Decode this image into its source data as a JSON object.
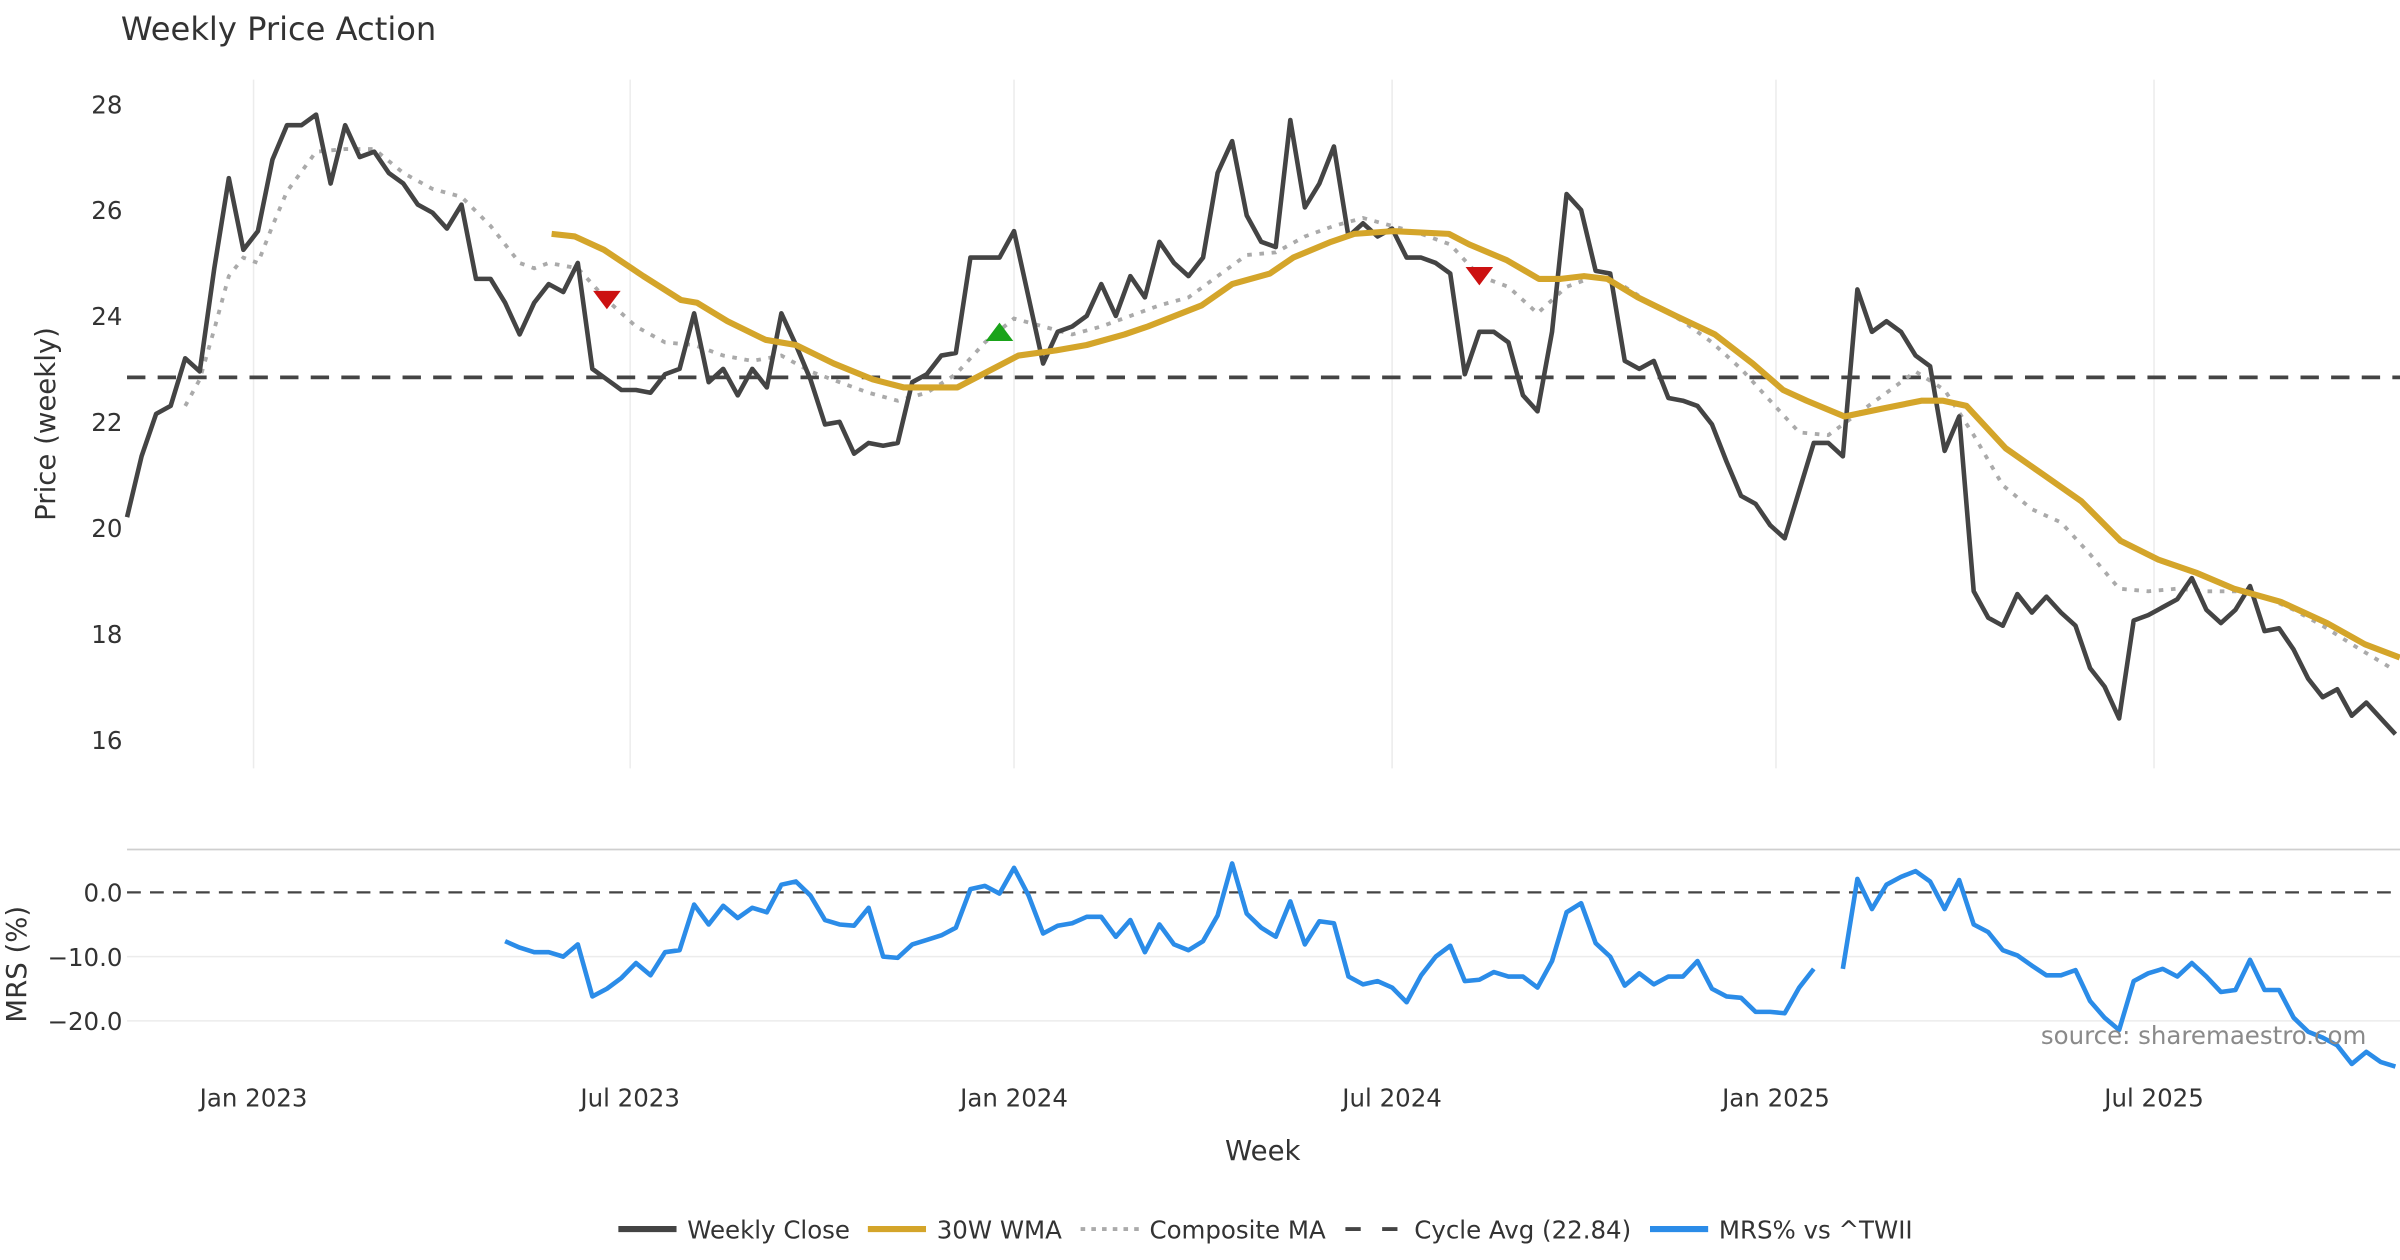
{
  "chart_data": {
    "type": "line",
    "title": "Weekly Price Action",
    "xlabel": "Week",
    "ylabel": "Price (weekly)",
    "ylabel_lower": "MRS (%)",
    "ylim": [
      15.4,
      28.5
    ],
    "ylim_lower": [
      -28.5,
      6.5
    ],
    "yticks": [
      28,
      26,
      24,
      22,
      20,
      18,
      16
    ],
    "yticks_lower": [
      {
        "value": 0,
        "label": "0.0"
      },
      {
        "value": -10,
        "label": "−10.0"
      },
      {
        "value": -20,
        "label": "−20.0"
      }
    ],
    "x_note": "x values are week index (0 = first week shown)",
    "xticks": [
      {
        "week": 8.7,
        "label": "Jan 2023"
      },
      {
        "week": 34.6,
        "label": "Jul 2023"
      },
      {
        "week": 61.0,
        "label": "Jan 2024"
      },
      {
        "week": 87.0,
        "label": "Jul 2024"
      },
      {
        "week": 113.4,
        "label": "Jan 2025"
      },
      {
        "week": 139.4,
        "label": "Jul 2025"
      }
    ],
    "weekly_close": [
      20.2,
      21.35,
      22.15,
      22.3,
      23.2,
      22.95,
      24.9,
      26.6,
      25.25,
      25.6,
      26.95,
      27.6,
      27.6,
      27.8,
      26.5,
      27.6,
      27.0,
      27.1,
      26.7,
      26.5,
      26.1,
      25.95,
      25.65,
      26.1,
      24.7,
      24.7,
      24.25,
      23.65,
      24.25,
      24.6,
      24.45,
      25.0,
      23.0,
      22.8,
      22.6,
      22.6,
      22.55,
      22.9,
      23.0,
      24.05,
      22.75,
      23.0,
      22.5,
      23.0,
      22.65,
      24.05,
      23.45,
      22.8,
      21.95,
      22.0,
      21.4,
      21.6,
      21.55,
      21.6,
      22.75,
      22.9,
      23.25,
      23.3,
      25.1,
      25.1,
      25.1,
      25.6,
      24.35,
      23.1,
      23.7,
      23.8,
      24.0,
      24.6,
      24.0,
      24.75,
      24.35,
      25.4,
      25.0,
      24.75,
      25.1,
      26.7,
      27.3,
      25.9,
      25.4,
      25.3,
      27.7,
      26.05,
      26.5,
      27.2,
      25.5,
      25.75,
      25.5,
      25.65,
      25.1,
      25.1,
      25.0,
      24.8,
      22.9,
      23.7,
      23.7,
      23.5,
      22.5,
      22.2,
      23.7,
      26.3,
      26.0,
      24.85,
      24.8,
      23.15,
      23.0,
      23.15,
      22.45,
      22.4,
      22.3,
      21.95,
      21.25,
      20.6,
      20.45,
      20.05,
      19.8,
      20.7,
      21.6,
      21.6,
      21.35,
      24.5,
      23.7,
      23.9,
      23.7,
      23.25,
      23.05,
      21.45,
      22.1,
      18.8,
      18.3,
      18.15,
      18.75,
      18.4,
      18.7,
      18.4,
      18.15,
      17.35,
      17.0,
      16.4,
      18.25,
      18.35,
      18.5,
      18.65,
      19.05,
      18.45,
      18.2,
      18.45,
      18.9,
      18.05,
      18.1,
      17.7,
      17.15,
      16.8,
      16.95,
      16.45,
      16.7,
      16.4,
      16.1
    ],
    "wma_30w": [
      [
        29.2,
        25.55
      ],
      [
        30.8,
        25.5
      ],
      [
        32.8,
        25.25
      ],
      [
        35.5,
        24.75
      ],
      [
        38.1,
        24.3
      ],
      [
        39.2,
        24.25
      ],
      [
        41.3,
        23.9
      ],
      [
        43.9,
        23.55
      ],
      [
        46,
        23.45
      ],
      [
        48.6,
        23.1
      ],
      [
        51.3,
        22.8
      ],
      [
        53.4,
        22.65
      ],
      [
        57.1,
        22.65
      ],
      [
        59.2,
        22.95
      ],
      [
        61.3,
        23.25
      ],
      [
        63.9,
        23.35
      ],
      [
        66,
        23.45
      ],
      [
        68.6,
        23.65
      ],
      [
        70.2,
        23.8
      ],
      [
        73.9,
        24.2
      ],
      [
        76,
        24.6
      ],
      [
        78.6,
        24.8
      ],
      [
        80.2,
        25.1
      ],
      [
        82.8,
        25.4
      ],
      [
        84.4,
        25.55
      ],
      [
        87.1,
        25.6
      ],
      [
        90.9,
        25.55
      ],
      [
        92.3,
        25.35
      ],
      [
        94.9,
        25.05
      ],
      [
        97.1,
        24.7
      ],
      [
        98.6,
        24.7
      ],
      [
        100.2,
        24.75
      ],
      [
        101.8,
        24.7
      ],
      [
        103.9,
        24.35
      ],
      [
        106.5,
        24.0
      ],
      [
        109.2,
        23.65
      ],
      [
        111.8,
        23.1
      ],
      [
        113.9,
        22.6
      ],
      [
        115.5,
        22.4
      ],
      [
        118.1,
        22.1
      ],
      [
        120.7,
        22.25
      ],
      [
        123.4,
        22.4
      ],
      [
        124.9,
        22.4
      ],
      [
        126.5,
        22.3
      ],
      [
        129.2,
        21.5
      ],
      [
        131.8,
        21.0
      ],
      [
        134.4,
        20.5
      ],
      [
        137.1,
        19.75
      ],
      [
        139.7,
        19.4
      ],
      [
        142.3,
        19.15
      ],
      [
        144.9,
        18.85
      ],
      [
        148.1,
        18.6
      ],
      [
        151.3,
        18.2
      ],
      [
        153.9,
        17.8
      ],
      [
        156.3,
        17.55
      ]
    ],
    "composite_ma": [
      [
        4,
        22.3
      ],
      [
        5,
        22.8
      ],
      [
        6,
        23.75
      ],
      [
        7,
        24.75
      ],
      [
        8,
        25.1
      ],
      [
        9,
        25.0
      ],
      [
        10,
        25.7
      ],
      [
        11,
        26.35
      ],
      [
        13,
        27.1
      ],
      [
        15,
        27.15
      ],
      [
        17,
        27.15
      ],
      [
        19,
        26.7
      ],
      [
        21,
        26.4
      ],
      [
        23,
        26.25
      ],
      [
        25,
        25.7
      ],
      [
        27,
        25.0
      ],
      [
        28,
        24.9
      ],
      [
        29,
        25.0
      ],
      [
        31,
        24.9
      ],
      [
        33,
        24.3
      ],
      [
        35,
        23.8
      ],
      [
        37,
        23.5
      ],
      [
        39,
        23.45
      ],
      [
        41,
        23.25
      ],
      [
        43,
        23.15
      ],
      [
        45,
        23.25
      ],
      [
        47,
        22.95
      ],
      [
        49,
        22.75
      ],
      [
        51,
        22.55
      ],
      [
        53,
        22.4
      ],
      [
        55,
        22.55
      ],
      [
        57,
        22.9
      ],
      [
        59,
        23.5
      ],
      [
        61,
        23.95
      ],
      [
        63,
        23.8
      ],
      [
        65,
        23.65
      ],
      [
        67,
        23.8
      ],
      [
        69,
        24.0
      ],
      [
        71,
        24.2
      ],
      [
        73,
        24.35
      ],
      [
        75,
        24.75
      ],
      [
        77,
        25.15
      ],
      [
        79,
        25.2
      ],
      [
        81,
        25.5
      ],
      [
        83,
        25.7
      ],
      [
        85,
        25.85
      ],
      [
        87,
        25.7
      ],
      [
        89,
        25.55
      ],
      [
        91,
        25.35
      ],
      [
        93,
        24.75
      ],
      [
        95,
        24.55
      ],
      [
        97,
        24.05
      ],
      [
        99,
        24.55
      ],
      [
        101,
        24.75
      ],
      [
        103,
        24.55
      ],
      [
        105,
        24.2
      ],
      [
        107,
        23.9
      ],
      [
        109,
        23.5
      ],
      [
        111,
        23.0
      ],
      [
        113,
        22.4
      ],
      [
        115,
        21.8
      ],
      [
        117,
        21.75
      ],
      [
        119,
        22.15
      ],
      [
        121,
        22.55
      ],
      [
        123,
        22.95
      ],
      [
        125,
        22.6
      ],
      [
        127,
        21.75
      ],
      [
        129,
        20.8
      ],
      [
        131,
        20.35
      ],
      [
        133,
        20.1
      ],
      [
        135,
        19.5
      ],
      [
        137,
        18.85
      ],
      [
        139,
        18.8
      ],
      [
        141,
        18.85
      ],
      [
        143,
        18.8
      ],
      [
        145,
        18.8
      ],
      [
        147,
        18.7
      ],
      [
        149,
        18.45
      ],
      [
        151,
        18.15
      ],
      [
        153,
        17.8
      ],
      [
        156,
        17.3
      ]
    ],
    "cycle_avg": 22.84,
    "signals": [
      {
        "type": "sell",
        "week": 33,
        "value": 24.3
      },
      {
        "type": "buy",
        "week": 60,
        "value": 23.7
      },
      {
        "type": "sell",
        "week": 93,
        "value": 24.75
      }
    ],
    "mrs_start_week": 26,
    "mrs_pct": [
      -7.6,
      -8.6,
      -9.3,
      -9.3,
      -10,
      -8.1,
      -16.2,
      -15,
      -13.3,
      -11,
      -12.9,
      -9.3,
      -9,
      -1.9,
      -5,
      -2.1,
      -4,
      -2.4,
      -3.1,
      1.2,
      1.7,
      -0.5,
      -4.3,
      -5,
      -5.2,
      -2.4,
      -10,
      -10.2,
      -8.1,
      -7.4,
      -6.7,
      -5.5,
      0.5,
      1,
      -0.2,
      3.8,
      -0.5,
      -6.4,
      -5.2,
      -4.8,
      -3.8,
      -3.8,
      -6.9,
      -4.3,
      -9.3,
      -5,
      -8.1,
      -9,
      -7.6,
      -3.6,
      4.5,
      -3.3,
      -5.5,
      -6.9,
      -1.4,
      -8.1,
      -4.5,
      -4.8,
      -13.1,
      -14.3,
      -13.8,
      -14.8,
      -17.1,
      -12.9,
      -10,
      -8.3,
      -13.8,
      -13.6,
      -12.4,
      -13.1,
      -13.1,
      -14.8,
      -10.7,
      -3.1,
      -1.7,
      -7.9,
      -10,
      -14.5,
      -12.6,
      -14.3,
      -13.1,
      -13.1,
      -10.7,
      -15,
      -16.2,
      -16.4,
      -18.6,
      -18.6,
      -18.8,
      -14.8,
      -11.9,
      null,
      -11.9,
      2.1,
      -2.6,
      1.2,
      2.4,
      3.3,
      1.7,
      -2.6,
      1.9,
      -5,
      -6.2,
      -9,
      -9.8,
      -11.4,
      -12.9,
      -12.9,
      -12.1,
      -16.9,
      -19.5,
      -21.4,
      -13.8,
      -12.6,
      -11.9,
      -13.1,
      -11,
      -13.1,
      -15.5,
      -15.2,
      -10.5,
      -15.2,
      -15.2,
      -19.5,
      -21.7,
      -22.6,
      -23.8,
      -26.7,
      -24.8,
      -26.4,
      -27.1
    ],
    "legend": [
      {
        "label": "Weekly Close",
        "color": "#444444",
        "style": "solid"
      },
      {
        "label": "30W WMA",
        "color": "#d4a52a",
        "style": "solid"
      },
      {
        "label": "Composite MA",
        "color": "#aaaaaa",
        "style": "dotted"
      },
      {
        "label": "Cycle Avg (22.84)",
        "color": "#444444",
        "style": "dashed"
      },
      {
        "label": "MRS% vs ^TWII",
        "color": "#2b8ce8",
        "style": "solid"
      }
    ],
    "legend_position": "bottom-center",
    "annotation": "source: sharemaestro.com",
    "colors": {
      "buy": "#1aa31a",
      "sell": "#cc1111",
      "grid": "#ececec"
    }
  }
}
